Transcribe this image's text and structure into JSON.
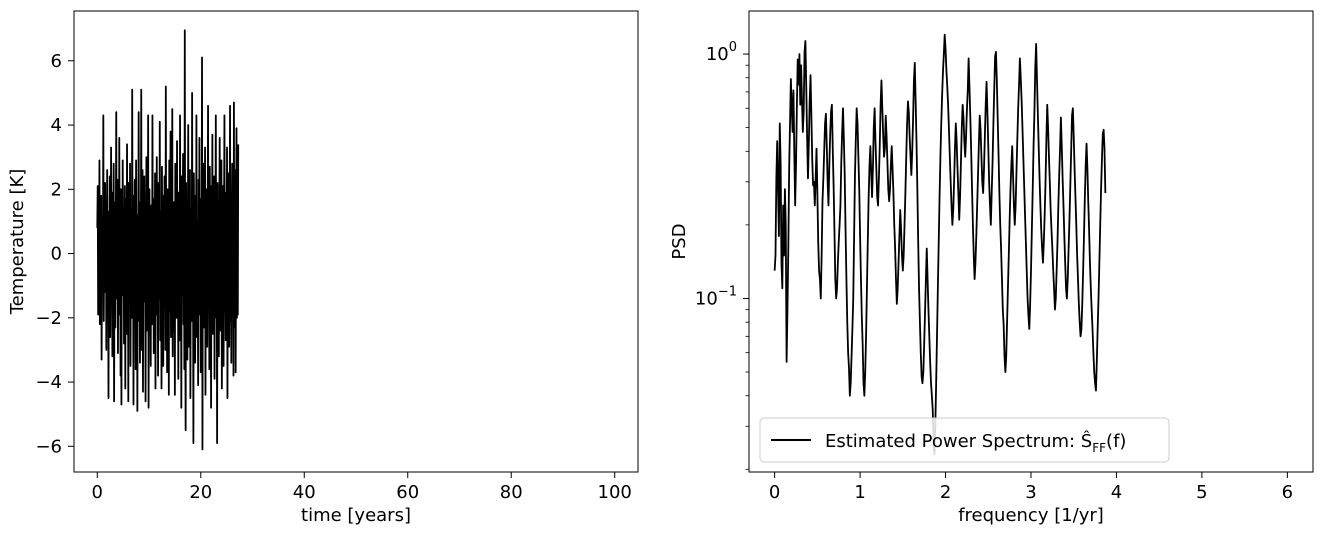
{
  "chart_data": [
    {
      "type": "line",
      "xlabel": "time [years]",
      "ylabel": "Temperature [K]",
      "xlim": [
        -4.5,
        104.5
      ],
      "ylim": [
        -6.8,
        7.55
      ],
      "xticks": [
        0,
        20,
        40,
        60,
        80,
        100
      ],
      "xtick_labels": [
        "0",
        "20",
        "40",
        "60",
        "80",
        "100"
      ],
      "yticks": [
        -6,
        -4,
        -2,
        0,
        2,
        4,
        6
      ],
      "ytick_labels": [
        "−6",
        "−4",
        "−2",
        "0",
        "2",
        "4",
        "6"
      ],
      "grid": false,
      "series": [
        {
          "color": "#000000",
          "x_start": 0,
          "x_step": 0.0833,
          "values": [
            0.8,
            2.1,
            -1.9,
            1.2,
            -0.4,
            2.9,
            -2.2,
            0.6,
            -1.1,
            1.8,
            -3.3,
            0.2,
            1.1,
            -0.9,
            4.3,
            -2.1,
            0.5,
            -1.2,
            2.2,
            -0.3,
            1.5,
            -3.0,
            0.9,
            2.6,
            -1.7,
            0.4,
            -4.5,
            1.3,
            -0.8,
            2.4,
            -2.6,
            0.1,
            3.3,
            -1.5,
            0.7,
            -3.2,
            1.9,
            -0.6,
            2.8,
            -4.6,
            0.3,
            1.6,
            -2.3,
            0.8,
            4.4,
            -1.4,
            -0.2,
            2.3,
            -3.1,
            0.6,
            -1.9,
            3.6,
            -0.5,
            1.1,
            -3.8,
            2.0,
            -4.7,
            0.9,
            -1.3,
            2.9,
            -0.7,
            1.4,
            -2.8,
            0.4,
            2.1,
            -4.2,
            1.7,
            0.2,
            -2.5,
            3.4,
            -0.8,
            1.0,
            -4.6,
            2.2,
            0.6,
            -1.6,
            2.8,
            -3.5,
            0.3,
            1.4,
            -2.0,
            5.1,
            -0.9,
            0.7,
            -4.7,
            1.8,
            -1.1,
            2.3,
            0.1,
            -3.6,
            2.9,
            -1.3,
            0.5,
            -4.9,
            1.2,
            -0.4,
            4.4,
            -2.1,
            0.8,
            -3.4,
            1.6,
            -0.2,
            5.1,
            -3.0,
            0.9,
            2.6,
            -4.3,
            0.4,
            -1.5,
            2.4,
            -0.6,
            1.3,
            -4.6,
            0.7,
            3.0,
            -2.4,
            1.1,
            -0.9,
            4.3,
            -4.8,
            0.2,
            2.0,
            -1.7,
            0.9,
            -3.5,
            1.5,
            0.3,
            -2.2,
            4.3,
            -0.8,
            1.7,
            -3.1,
            0.6,
            -1.0,
            2.5,
            -4.2,
            1.2,
            -0.3,
            3.0,
            -1.9,
            0.4,
            -3.8,
            2.2,
            0.8,
            -1.4,
            4.1,
            -2.7,
            0.5,
            1.3,
            -4.2,
            2.7,
            -0.7,
            0.9,
            -3.5,
            1.8,
            -1.6,
            2.4,
            0.2,
            -3.0,
            5.2,
            -1.2,
            0.7,
            -3.7,
            2.0,
            -0.5,
            1.1,
            -4.4,
            2.9,
            -1.8,
            0.6,
            3.8,
            -2.6,
            0.3,
            -1.1,
            4.5,
            -3.2,
            0.9,
            1.6,
            -2.4,
            0.1,
            -4.4,
            2.8,
            -0.9,
            1.3,
            -2.0,
            3.5,
            -1.5,
            0.7,
            -3.9,
            1.9,
            0.4,
            -2.7,
            4.3,
            -0.6,
            1.2,
            -4.8,
            2.4,
            -1.3,
            0.5,
            3.1,
            -2.2,
            0.9,
            -3.6,
            6.95,
            -1.4,
            -5.5,
            2.2,
            -0.7,
            1.6,
            -3.3,
            0.3,
            4.0,
            -2.9,
            1.1,
            -1.8,
            2.6,
            -4.5,
            0.6,
            1.4,
            -2.1,
            5.0,
            -1.0,
            0.4,
            -5.9,
            2.5,
            -0.3,
            1.8,
            -3.4,
            0.7,
            -1.5,
            4.3,
            -2.6,
            1.0,
            0.2,
            -4.1,
            2.3,
            -0.8,
            3.6,
            -1.9,
            0.5,
            -3.7,
            1.7,
            -1.2,
            6.1,
            -6.1,
            0.9,
            2.8,
            -2.3,
            0.4,
            -1.6,
            3.3,
            -4.4,
            1.2,
            -0.5,
            2.0,
            -2.9,
            0.8,
            4.6,
            -1.4,
            0.3,
            -3.6,
            2.7,
            -0.9,
            1.5,
            -4.8,
            2.1,
            -0.2,
            3.7,
            -2.5,
            0.6,
            -1.7,
            2.4,
            -3.9,
            1.3,
            0.1,
            4.3,
            -2.0,
            0.7,
            -5.9,
            2.2,
            -1.1,
            1.6,
            -3.2,
            0.5,
            3.6,
            -2.4,
            0.9,
            -1.3,
            2.9,
            -4.2,
            1.4,
            -0.6,
            2.1,
            -3.5,
            0.8,
            4.3,
            -1.8,
            0.2,
            -2.7,
            1.9,
            -1.0,
            3.3,
            -4.5,
            1.1,
            -0.4,
            2.5,
            -2.9,
            0.6,
            4.6,
            -2.1,
            1.2,
            -3.4,
            0.4,
            2.8,
            -1.5,
            0.9,
            -3.8,
            4.7,
            -2.3,
            1.3,
            2.6,
            -3.7,
            0.5,
            3.9,
            -2.0,
            1.7,
            -1.9,
            3.4
          ]
        }
      ]
    },
    {
      "type": "line",
      "scale_y": "log",
      "xlabel": "frequency [1/yr]",
      "ylabel": "PSD",
      "xlim": [
        -0.3,
        6.3
      ],
      "ylim": [
        0.0195,
        1.5
      ],
      "xticks": [
        0,
        1,
        2,
        3,
        4,
        5,
        6
      ],
      "xtick_labels": [
        "0",
        "1",
        "2",
        "3",
        "4",
        "5",
        "6"
      ],
      "yticks": [
        0.1,
        1
      ],
      "ytick_labels": [
        [
          "10",
          "−1"
        ],
        [
          "10",
          "0"
        ]
      ],
      "grid": false,
      "legend_position": "lower-left",
      "series": [
        {
          "name": "Estimated Power Spectrum: Ŝ",
          "name_subscript": "FF",
          "name_suffix": "(f)",
          "color": "#000000",
          "x_start": 0,
          "x_step": 0.01,
          "values": [
            0.13,
            0.15,
            0.31,
            0.44,
            0.28,
            0.18,
            0.52,
            0.36,
            0.14,
            0.11,
            0.24,
            0.15,
            0.28,
            0.2,
            0.055,
            0.09,
            0.16,
            0.34,
            0.52,
            0.79,
            0.61,
            0.48,
            0.71,
            0.4,
            0.24,
            0.35,
            0.6,
            0.95,
            0.75,
            1.0,
            0.62,
            0.9,
            0.65,
            0.48,
            0.58,
            1.02,
            1.13,
            0.74,
            0.46,
            0.31,
            0.43,
            0.64,
            0.82,
            0.56,
            0.37,
            0.29,
            0.3,
            0.24,
            0.31,
            0.41,
            0.27,
            0.17,
            0.13,
            0.12,
            0.1,
            0.15,
            0.25,
            0.31,
            0.4,
            0.52,
            0.57,
            0.42,
            0.3,
            0.24,
            0.35,
            0.47,
            0.58,
            0.62,
            0.41,
            0.29,
            0.19,
            0.12,
            0.1,
            0.11,
            0.14,
            0.17,
            0.2,
            0.24,
            0.36,
            0.48,
            0.6,
            0.45,
            0.32,
            0.19,
            0.12,
            0.08,
            0.06,
            0.052,
            0.04,
            0.045,
            0.058,
            0.075,
            0.1,
            0.18,
            0.32,
            0.45,
            0.6,
            0.52,
            0.38,
            0.28,
            0.18,
            0.12,
            0.085,
            0.065,
            0.045,
            0.04,
            0.05,
            0.07,
            0.11,
            0.17,
            0.26,
            0.35,
            0.42,
            0.33,
            0.26,
            0.34,
            0.5,
            0.6,
            0.44,
            0.34,
            0.26,
            0.24,
            0.31,
            0.42,
            0.62,
            0.78,
            0.6,
            0.47,
            0.38,
            0.41,
            0.56,
            0.46,
            0.36,
            0.28,
            0.25,
            0.28,
            0.35,
            0.42,
            0.34,
            0.27,
            0.2,
            0.16,
            0.12,
            0.095,
            0.11,
            0.14,
            0.18,
            0.23,
            0.19,
            0.15,
            0.13,
            0.15,
            0.2,
            0.27,
            0.38,
            0.52,
            0.64,
            0.58,
            0.46,
            0.38,
            0.32,
            0.4,
            0.54,
            0.78,
            0.92,
            0.64,
            0.44,
            0.28,
            0.17,
            0.11,
            0.08,
            0.06,
            0.048,
            0.045,
            0.05,
            0.065,
            0.088,
            0.12,
            0.16,
            0.12,
            0.09,
            0.07,
            0.055,
            0.045,
            0.04,
            0.035,
            0.026,
            0.023,
            0.03,
            0.045,
            0.07,
            0.11,
            0.17,
            0.26,
            0.38,
            0.52,
            0.68,
            0.85,
            1.0,
            1.2,
            1.05,
            0.86,
            0.74,
            0.62,
            0.49,
            0.38,
            0.3,
            0.24,
            0.2,
            0.23,
            0.3,
            0.41,
            0.52,
            0.44,
            0.34,
            0.27,
            0.21,
            0.26,
            0.36,
            0.5,
            0.62,
            0.55,
            0.44,
            0.38,
            0.46,
            0.59,
            0.71,
            0.96,
            0.73,
            0.55,
            0.4,
            0.28,
            0.2,
            0.15,
            0.12,
            0.14,
            0.18,
            0.24,
            0.32,
            0.43,
            0.56,
            0.49,
            0.38,
            0.3,
            0.27,
            0.34,
            0.46,
            0.62,
            0.77,
            0.58,
            0.42,
            0.3,
            0.24,
            0.2,
            0.27,
            0.36,
            0.52,
            0.72,
            0.98,
            1.02,
            0.78,
            0.55,
            0.39,
            0.27,
            0.2,
            0.16,
            0.12,
            0.09,
            0.078,
            0.058,
            0.05,
            0.058,
            0.08,
            0.11,
            0.15,
            0.21,
            0.28,
            0.35,
            0.42,
            0.32,
            0.24,
            0.2,
            0.24,
            0.33,
            0.45,
            0.6,
            0.75,
            0.96,
            0.8,
            0.65,
            0.5,
            0.38,
            0.29,
            0.22,
            0.17,
            0.13,
            0.1,
            0.085,
            0.075,
            0.095,
            0.13,
            0.19,
            0.28,
            0.42,
            0.58,
            0.88,
            1.1,
            0.79,
            0.57,
            0.42,
            0.31,
            0.24,
            0.19,
            0.16,
            0.14,
            0.17,
            0.22,
            0.3,
            0.45,
            0.62,
            0.5,
            0.38,
            0.3,
            0.23,
            0.19,
            0.16,
            0.13,
            0.11,
            0.09,
            0.1,
            0.13,
            0.17,
            0.24,
            0.32,
            0.41,
            0.55,
            0.42,
            0.31,
            0.24,
            0.18,
            0.14,
            0.11,
            0.1,
            0.12,
            0.16,
            0.21,
            0.29,
            0.4,
            0.56,
            0.6,
            0.46,
            0.34,
            0.26,
            0.2,
            0.15,
            0.12,
            0.095,
            0.08,
            0.07,
            0.075,
            0.095,
            0.13,
            0.18,
            0.26,
            0.35,
            0.43,
            0.34,
            0.25,
            0.19,
            0.14,
            0.11,
            0.09,
            0.075,
            0.06,
            0.05,
            0.045,
            0.042,
            0.055,
            0.075,
            0.1,
            0.14,
            0.2,
            0.28,
            0.37,
            0.47,
            0.49,
            0.41,
            0.27
          ]
        }
      ]
    }
  ]
}
